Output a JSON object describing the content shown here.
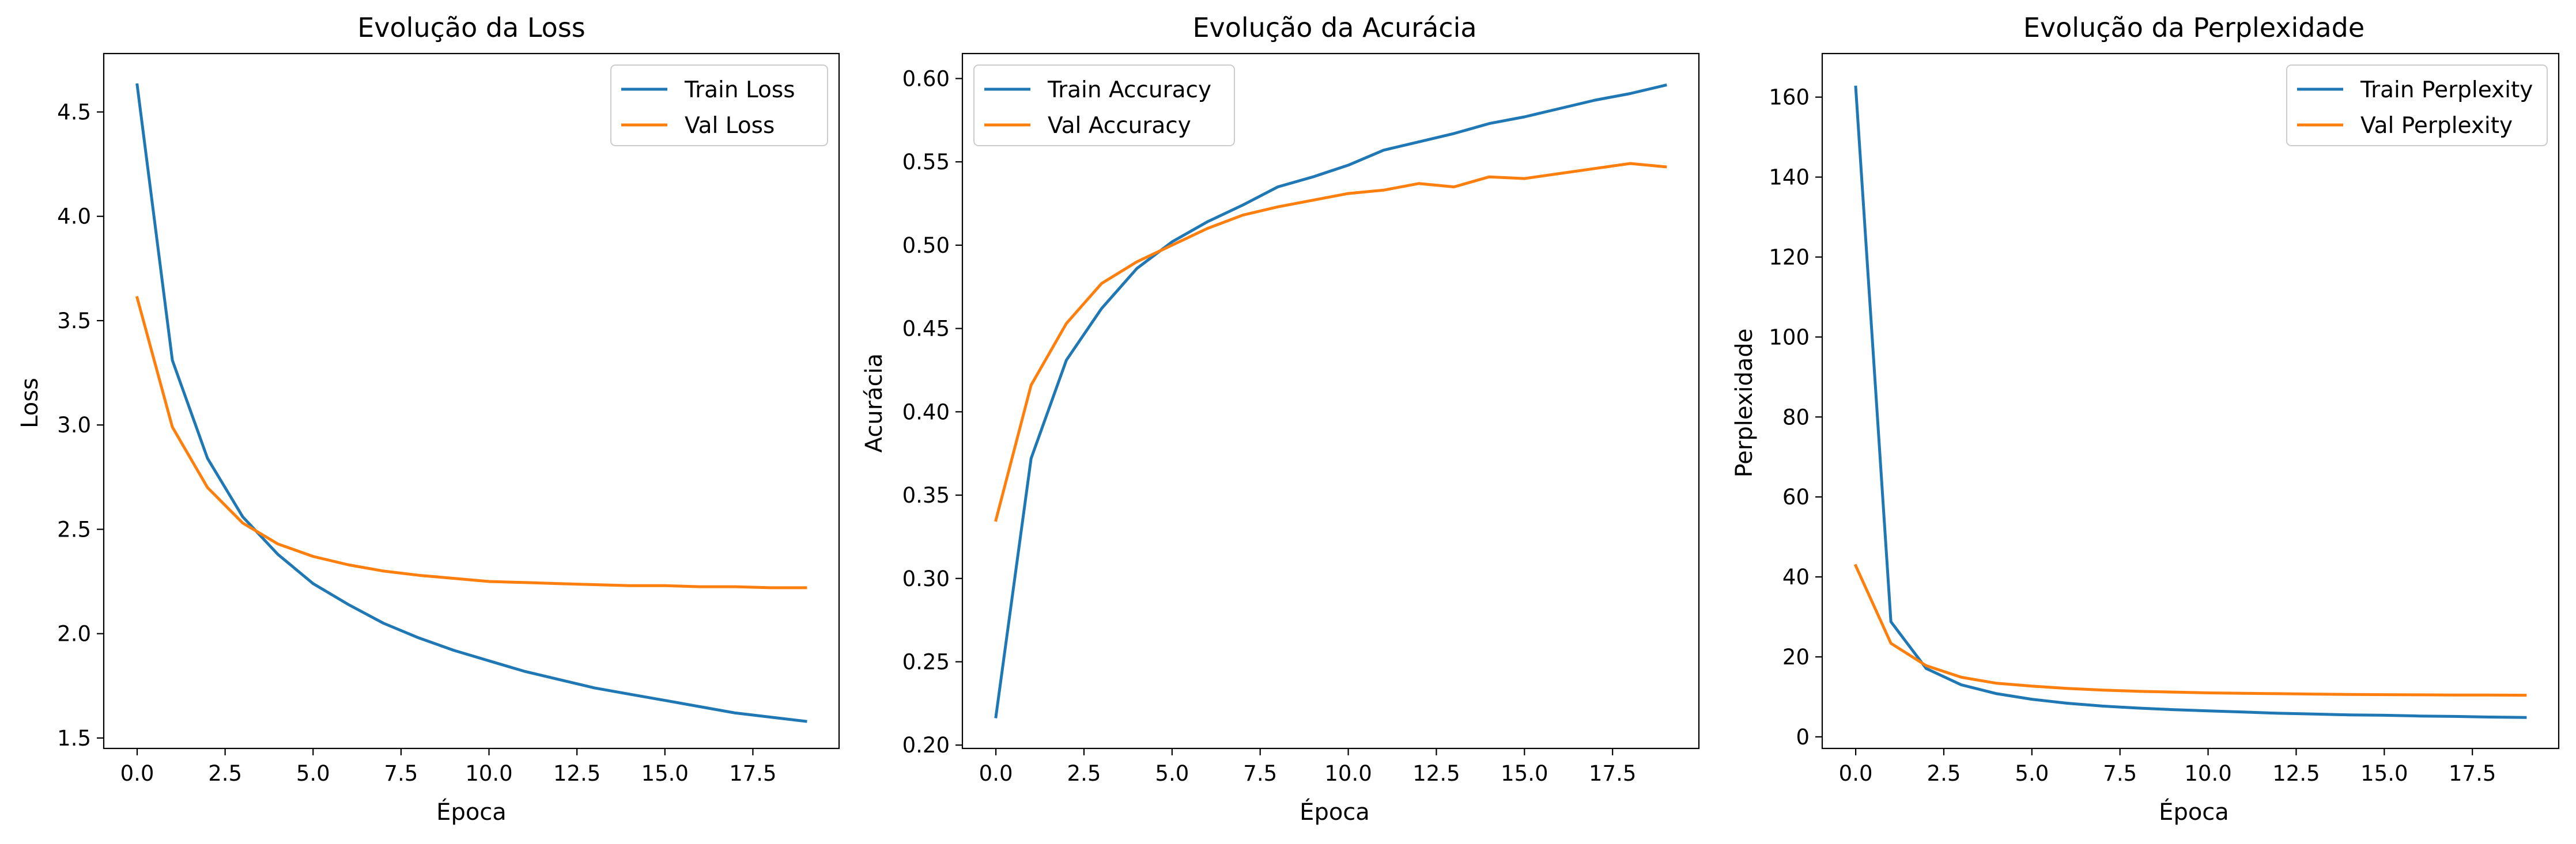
{
  "chart_data": [
    {
      "type": "line",
      "title": "Evolução da Loss",
      "xlabel": "Época",
      "ylabel": "Loss",
      "xlim": [
        -0.95,
        19.95
      ],
      "ylim": [
        1.45,
        4.78
      ],
      "xticks": [
        0.0,
        2.5,
        5.0,
        7.5,
        10.0,
        12.5,
        15.0,
        17.5
      ],
      "xtick_labels": [
        "0.0",
        "2.5",
        "5.0",
        "7.5",
        "10.0",
        "12.5",
        "15.0",
        "17.5"
      ],
      "yticks": [
        1.5,
        2.0,
        2.5,
        3.0,
        3.5,
        4.0,
        4.5
      ],
      "ytick_labels": [
        "1.5",
        "2.0",
        "2.5",
        "3.0",
        "3.5",
        "4.0",
        "4.5"
      ],
      "legend_position": "top-right",
      "x": [
        0,
        1,
        2,
        3,
        4,
        5,
        6,
        7,
        8,
        9,
        10,
        11,
        12,
        13,
        14,
        15,
        16,
        17,
        18,
        19
      ],
      "series": [
        {
          "name": "Train Loss",
          "color": "#1f77b4",
          "values": [
            4.63,
            3.31,
            2.84,
            2.56,
            2.38,
            2.24,
            2.14,
            2.05,
            1.98,
            1.92,
            1.87,
            1.82,
            1.78,
            1.74,
            1.71,
            1.68,
            1.65,
            1.62,
            1.6,
            1.58
          ]
        },
        {
          "name": "Val Loss",
          "color": "#ff7f0e",
          "values": [
            3.61,
            2.99,
            2.7,
            2.53,
            2.43,
            2.37,
            2.33,
            2.3,
            2.28,
            2.265,
            2.25,
            2.245,
            2.24,
            2.235,
            2.23,
            2.23,
            2.225,
            2.225,
            2.22,
            2.22
          ]
        }
      ]
    },
    {
      "type": "line",
      "title": "Evolução da Acurácia",
      "xlabel": "Época",
      "ylabel": "Acurácia",
      "xlim": [
        -0.95,
        19.95
      ],
      "ylim": [
        0.198,
        0.615
      ],
      "xticks": [
        0.0,
        2.5,
        5.0,
        7.5,
        10.0,
        12.5,
        15.0,
        17.5
      ],
      "xtick_labels": [
        "0.0",
        "2.5",
        "5.0",
        "7.5",
        "10.0",
        "12.5",
        "15.0",
        "17.5"
      ],
      "yticks": [
        0.2,
        0.25,
        0.3,
        0.35,
        0.4,
        0.45,
        0.5,
        0.55,
        0.6
      ],
      "ytick_labels": [
        "0.20",
        "0.25",
        "0.30",
        "0.35",
        "0.40",
        "0.45",
        "0.50",
        "0.55",
        "0.60"
      ],
      "legend_position": "top-left",
      "x": [
        0,
        1,
        2,
        3,
        4,
        5,
        6,
        7,
        8,
        9,
        10,
        11,
        12,
        13,
        14,
        15,
        16,
        17,
        18,
        19
      ],
      "series": [
        {
          "name": "Train Accuracy",
          "color": "#1f77b4",
          "values": [
            0.217,
            0.372,
            0.431,
            0.462,
            0.486,
            0.502,
            0.514,
            0.524,
            0.535,
            0.541,
            0.548,
            0.557,
            0.562,
            0.567,
            0.573,
            0.577,
            0.582,
            0.587,
            0.591,
            0.596
          ]
        },
        {
          "name": "Val Accuracy",
          "color": "#ff7f0e",
          "values": [
            0.335,
            0.416,
            0.453,
            0.477,
            0.49,
            0.5,
            0.51,
            0.518,
            0.523,
            0.527,
            0.531,
            0.533,
            0.537,
            0.535,
            0.541,
            0.54,
            0.543,
            0.546,
            0.549,
            0.547
          ]
        }
      ]
    },
    {
      "type": "line",
      "title": "Evolução da Perplexidade",
      "xlabel": "Época",
      "ylabel": "Perplexidade",
      "xlim": [
        -0.95,
        19.95
      ],
      "ylim": [
        -2.9,
        170.9
      ],
      "xticks": [
        0.0,
        2.5,
        5.0,
        7.5,
        10.0,
        12.5,
        15.0,
        17.5
      ],
      "xtick_labels": [
        "0.0",
        "2.5",
        "5.0",
        "7.5",
        "10.0",
        "12.5",
        "15.0",
        "17.5"
      ],
      "yticks": [
        0,
        20,
        40,
        60,
        80,
        100,
        120,
        140,
        160
      ],
      "ytick_labels": [
        "0",
        "20",
        "40",
        "60",
        "80",
        "100",
        "120",
        "140",
        "160"
      ],
      "legend_position": "top-right",
      "x": [
        0,
        1,
        2,
        3,
        4,
        5,
        6,
        7,
        8,
        9,
        10,
        11,
        12,
        13,
        14,
        15,
        16,
        17,
        18,
        19
      ],
      "series": [
        {
          "name": "Train Perplexity",
          "color": "#1f77b4",
          "values": [
            162.5,
            28.8,
            17.1,
            13.0,
            10.8,
            9.4,
            8.4,
            7.7,
            7.2,
            6.8,
            6.5,
            6.2,
            5.9,
            5.7,
            5.5,
            5.4,
            5.2,
            5.1,
            4.95,
            4.85
          ]
        },
        {
          "name": "Val Perplexity",
          "color": "#ff7f0e",
          "values": [
            42.8,
            23.4,
            17.8,
            14.9,
            13.4,
            12.7,
            12.1,
            11.7,
            11.4,
            11.2,
            11.0,
            10.9,
            10.8,
            10.7,
            10.6,
            10.55,
            10.5,
            10.45,
            10.45,
            10.4
          ]
        }
      ]
    }
  ]
}
